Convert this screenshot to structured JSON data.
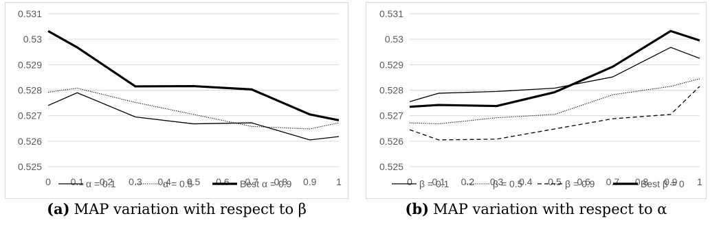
{
  "chart_data": [
    {
      "type": "line",
      "title": "",
      "caption_tag": "(a)",
      "caption": "MAP variation with respect to β",
      "xlabel": "",
      "ylabel": "",
      "x": [
        0,
        0.1,
        0.2,
        0.3,
        0.4,
        0.5,
        0.6,
        0.7,
        0.8,
        0.9,
        1
      ],
      "x_tick_labels": [
        "0",
        "0.1",
        "0.2",
        "0.3",
        "0.4",
        "0.5",
        "0.6",
        "0.7",
        "0.8",
        "0.9",
        "1"
      ],
      "ylim": [
        0.525,
        0.531
      ],
      "y_ticks": [
        0.525,
        0.526,
        0.527,
        0.528,
        0.529,
        0.53,
        0.531
      ],
      "y_tick_labels": [
        "0.525",
        "0.526",
        "0.527",
        "0.528",
        "0.529",
        "0.53",
        "0.531"
      ],
      "grid": "horizontal",
      "legend_position": "bottom",
      "series": [
        {
          "name": "α = 0.1",
          "style": "solid-thin",
          "color": "#000000",
          "points": [
            [
              0,
              0.5274
            ],
            [
              0.1,
              0.5279
            ],
            [
              0.3,
              0.52695
            ],
            [
              0.5,
              0.52668
            ],
            [
              0.7,
              0.52672
            ],
            [
              0.9,
              0.52605
            ],
            [
              1,
              0.52618
            ]
          ]
        },
        {
          "name": "α = 0.5",
          "style": "dotted",
          "color": "#000000",
          "points": [
            [
              0,
              0.52792
            ],
            [
              0.1,
              0.52808
            ],
            [
              0.3,
              0.52752
            ],
            [
              0.5,
              0.52705
            ],
            [
              0.7,
              0.52658
            ],
            [
              0.9,
              0.52648
            ],
            [
              1,
              0.52672
            ]
          ]
        },
        {
          "name": "Best α = 0.9",
          "style": "solid-thick",
          "color": "#000000",
          "points": [
            [
              0,
              0.53032
            ],
            [
              0.1,
              0.52968
            ],
            [
              0.3,
              0.52815
            ],
            [
              0.5,
              0.52816
            ],
            [
              0.7,
              0.52803
            ],
            [
              0.9,
              0.52705
            ],
            [
              1,
              0.52682
            ]
          ]
        }
      ]
    },
    {
      "type": "line",
      "title": "",
      "caption_tag": "(b)",
      "caption": "MAP variation with respect to α",
      "xlabel": "",
      "ylabel": "",
      "x": [
        0,
        0.1,
        0.2,
        0.3,
        0.4,
        0.5,
        0.6,
        0.7,
        0.8,
        0.9,
        1
      ],
      "x_tick_labels": [
        "0",
        "0.1",
        "0.2",
        "0.3",
        "0.4",
        "0.5",
        "0.6",
        "0.7",
        "0.8",
        "0.9",
        "1"
      ],
      "ylim": [
        0.525,
        0.531
      ],
      "y_ticks": [
        0.525,
        0.526,
        0.527,
        0.528,
        0.529,
        0.53,
        0.531
      ],
      "y_tick_labels": [
        "0.525",
        "0.526",
        "0.527",
        "0.528",
        "0.529",
        "0.53",
        "0.531"
      ],
      "grid": "horizontal",
      "legend_position": "bottom",
      "series": [
        {
          "name": "β = 0.1",
          "style": "solid-thin",
          "color": "#000000",
          "points": [
            [
              0,
              0.52755
            ],
            [
              0.1,
              0.52788
            ],
            [
              0.3,
              0.52795
            ],
            [
              0.5,
              0.52808
            ],
            [
              0.7,
              0.52852
            ],
            [
              0.9,
              0.52968
            ],
            [
              1,
              0.52925
            ]
          ]
        },
        {
          "name": "β = 0.5",
          "style": "dotted",
          "color": "#000000",
          "points": [
            [
              0,
              0.52672
            ],
            [
              0.1,
              0.52668
            ],
            [
              0.3,
              0.52692
            ],
            [
              0.5,
              0.52705
            ],
            [
              0.7,
              0.52782
            ],
            [
              0.9,
              0.52815
            ],
            [
              1,
              0.52845
            ]
          ]
        },
        {
          "name": "β = 0.9",
          "style": "dashed",
          "color": "#000000",
          "points": [
            [
              0,
              0.52645
            ],
            [
              0.1,
              0.52605
            ],
            [
              0.3,
              0.52608
            ],
            [
              0.5,
              0.52648
            ],
            [
              0.7,
              0.52688
            ],
            [
              0.9,
              0.52705
            ],
            [
              1,
              0.52815
            ]
          ]
        },
        {
          "name": "Best β = 0",
          "style": "solid-thick",
          "color": "#000000",
          "points": [
            [
              0,
              0.52735
            ],
            [
              0.1,
              0.52742
            ],
            [
              0.3,
              0.52738
            ],
            [
              0.5,
              0.52792
            ],
            [
              0.7,
              0.52892
            ],
            [
              0.9,
              0.53032
            ],
            [
              1,
              0.52995
            ]
          ]
        }
      ]
    }
  ]
}
